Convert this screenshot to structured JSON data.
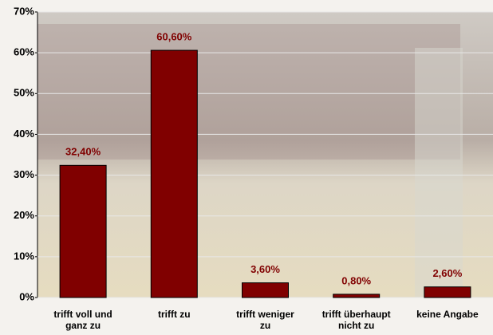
{
  "chart_data": {
    "type": "bar",
    "categories": [
      "trifft voll und\nganz zu",
      "trifft zu",
      "trifft weniger\nzu",
      "trifft überhaupt\nnicht zu",
      "keine Angabe"
    ],
    "values": [
      32.4,
      60.6,
      3.6,
      0.8,
      2.6
    ],
    "value_labels": [
      "32,40%",
      "60,60%",
      "3,60%",
      "0,80%",
      "2,60%"
    ],
    "color": "#800000",
    "ylim": [
      0,
      70
    ],
    "yticks": [
      {
        "value": 0,
        "label": "0%"
      },
      {
        "value": 10,
        "label": "10%"
      },
      {
        "value": 20,
        "label": "20%"
      },
      {
        "value": 30,
        "label": "30%"
      },
      {
        "value": 40,
        "label": "40%"
      },
      {
        "value": 50,
        "label": "50%"
      },
      {
        "value": 60,
        "label": "60%"
      },
      {
        "value": 70,
        "label": "70%"
      }
    ],
    "grid": true
  }
}
